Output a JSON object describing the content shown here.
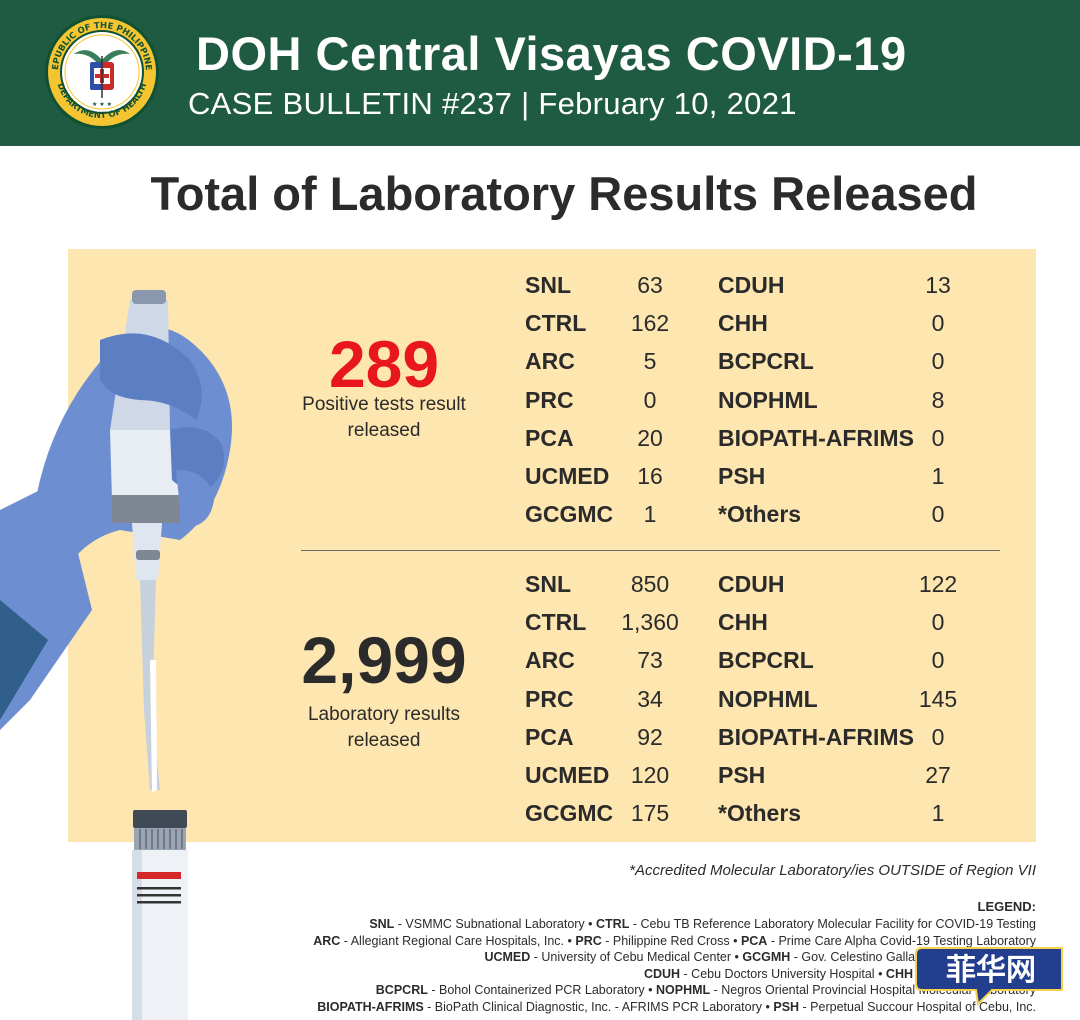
{
  "header": {
    "title": "DOH Central Visayas COVID-19",
    "subtitle": "CASE BULLETIN #237 | February 10, 2021",
    "seal_text_top": "REPUBLIC OF THE PHILIPPINES",
    "seal_text_bottom": "DEPARTMENT OF HEALTH"
  },
  "section_title": "Total of Laboratory Results Released",
  "positive": {
    "total": "289",
    "caption_line1": "Positive tests result",
    "caption_line2": "released",
    "left": [
      {
        "lab": "SNL",
        "val": "63"
      },
      {
        "lab": "CTRL",
        "val": "162"
      },
      {
        "lab": "ARC",
        "val": "5"
      },
      {
        "lab": "PRC",
        "val": "0"
      },
      {
        "lab": "PCA",
        "val": "20"
      },
      {
        "lab": "UCMED",
        "val": "16"
      },
      {
        "lab": "GCGMC",
        "val": "1"
      }
    ],
    "right": [
      {
        "lab": "CDUH",
        "val": "13"
      },
      {
        "lab": "CHH",
        "val": "0"
      },
      {
        "lab": "BCPCRL",
        "val": "0"
      },
      {
        "lab": "NOPHML",
        "val": "8"
      },
      {
        "lab": "BIOPATH-AFRIMS",
        "val": "0"
      },
      {
        "lab": "PSH",
        "val": "1"
      },
      {
        "lab": "*Others",
        "val": "0"
      }
    ]
  },
  "total": {
    "total": "2,999",
    "caption_line1": "Laboratory results",
    "caption_line2": "released",
    "left": [
      {
        "lab": "SNL",
        "val": "850"
      },
      {
        "lab": "CTRL",
        "val": "1,360"
      },
      {
        "lab": "ARC",
        "val": "73"
      },
      {
        "lab": "PRC",
        "val": "34"
      },
      {
        "lab": "PCA",
        "val": "92"
      },
      {
        "lab": "UCMED",
        "val": "120"
      },
      {
        "lab": "GCGMC",
        "val": "175"
      }
    ],
    "right": [
      {
        "lab": "CDUH",
        "val": "122"
      },
      {
        "lab": "CHH",
        "val": "0"
      },
      {
        "lab": "BCPCRL",
        "val": "0"
      },
      {
        "lab": "NOPHML",
        "val": "145"
      },
      {
        "lab": "BIOPATH-AFRIMS",
        "val": "0"
      },
      {
        "lab": "PSH",
        "val": "27"
      },
      {
        "lab": "*Others",
        "val": "1"
      }
    ]
  },
  "footnote": "*Accredited Molecular Laboratory/ies OUTSIDE of Region VII",
  "legend": {
    "title": "LEGEND:",
    "lines": [
      "SNL - VSMMC Subnational Laboratory • CTRL - Cebu TB Reference Laboratory Molecular Facility for COVID-19 Testing",
      "ARC - Allegiant Regional Care Hospitals, Inc. • PRC - Philippine Red Cross • PCA - Prime Care Alpha Covid-19 Testing Laboratory",
      "UCMED - University of Cebu Medical Center • GCGMH - Gov. Celestino Gallares Memorial Hospital",
      "CDUH - Cebu Doctors University Hospital • CHH - Chong Hua Hospital",
      "BCPCRL - Bohol Containerized PCR Laboratory • NOPHML - Negros Oriental Provincial Hospital Molecular Laboratory",
      "BIOPATH-AFRIMS - BioPath Clinical Diagnostic, Inc. - AFRIMS PCR Laboratory • PSH - Perpetual Succour Hospital of Cebu, Inc."
    ]
  },
  "watermark": "菲华网",
  "colors": {
    "header_bg": "#1f5a42",
    "panel_bg": "#fde6b0",
    "positive_red": "#e8171f",
    "glove_blue": "#6d8fd1"
  },
  "icons": {
    "seal": "doh-seal-icon",
    "illustration": "gloved-hand-pipette-icon"
  }
}
